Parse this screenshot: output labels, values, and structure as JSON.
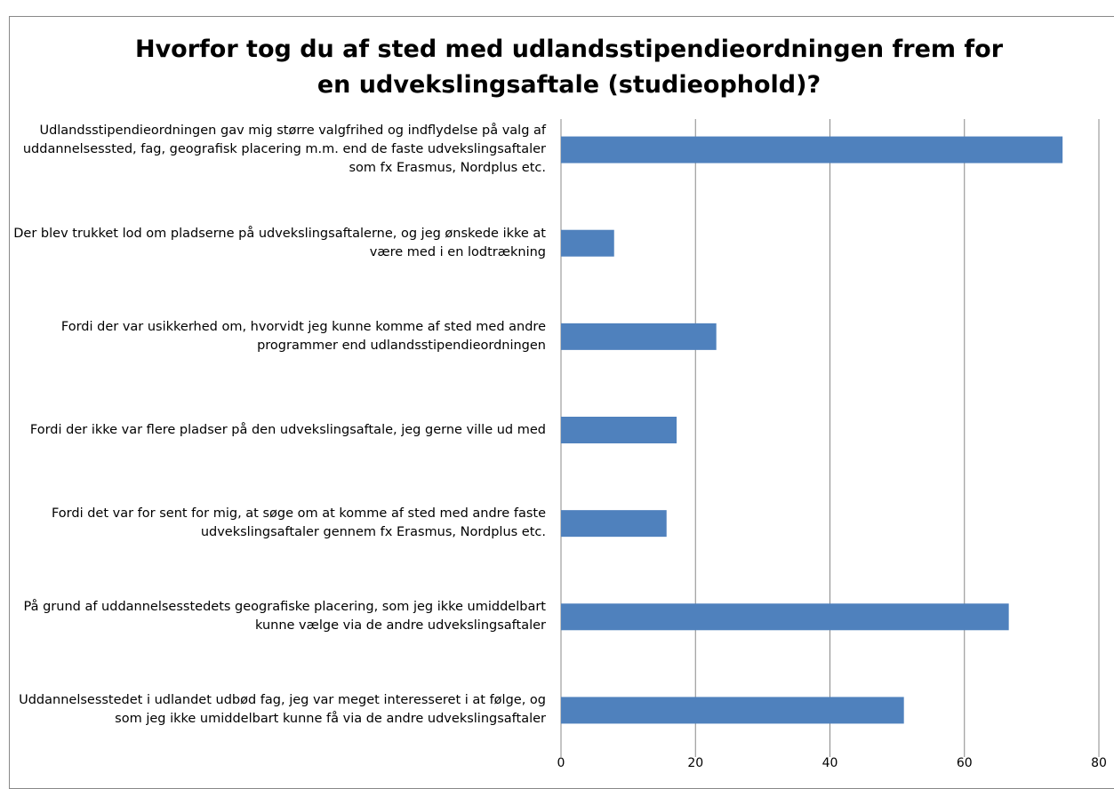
{
  "chart_data": {
    "type": "bar",
    "orientation": "horizontal",
    "title": "Hvorfor tog du af sted med udlandsstipendieordningen frem for en udvekslingsaftale (studieophold)?",
    "categories": [
      "Udlandsstipendieordningen gav mig større valgfrihed og indflydelse på valg af uddannelsessted, fag, geografisk placering m.m. end de faste udvekslingsaftaler som fx Erasmus, Nordplus etc.",
      "Der blev trukket lod om pladserne på udvekslingsaftalerne, og jeg ønskede ikke at være med i en lodtrækning",
      "Fordi der var usikkerhed om, hvorvidt jeg kunne komme af sted med andre programmer end udlandsstipendieordningen",
      "Fordi der ikke var flere pladser på den udvekslingsaftale, jeg gerne ville ud med",
      "Fordi det var for sent for mig, at søge om at komme af sted med andre faste udvekslingsaftaler gennem fx Erasmus, Nordplus etc.",
      "På grund af uddannelsesstedets geografiske placering, som jeg ikke umiddelbart kunne vælge via de andre udvekslingsaftaler",
      "Uddannelsesstedet i udlandet udbød fag, jeg var meget interesseret i at følge, og som jeg ikke umiddelbart kunne få via de andre udvekslingsaftaler"
    ],
    "values": [
      74.6,
      7.9,
      23.1,
      17.2,
      15.7,
      66.6,
      51.0
    ],
    "color": "#4f81bd",
    "xlim": [
      0,
      80
    ],
    "xticks": [
      0,
      20,
      40,
      60,
      80
    ],
    "grid": true
  }
}
